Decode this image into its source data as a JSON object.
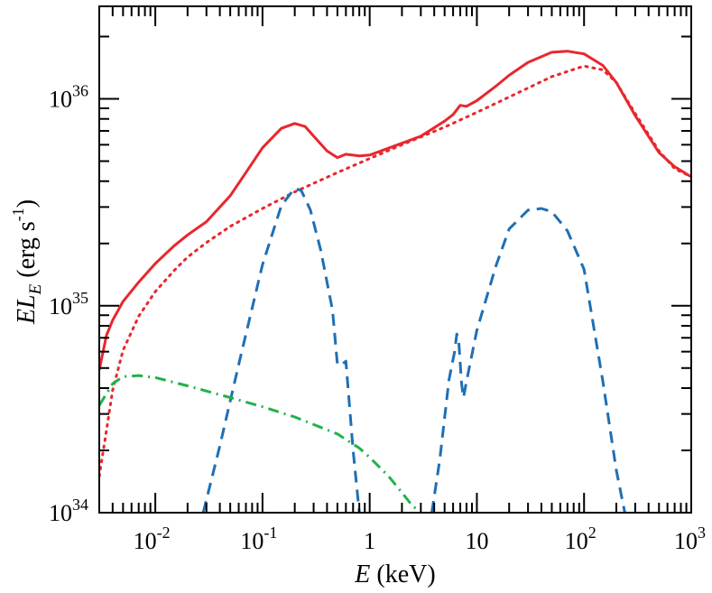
{
  "chart_data": {
    "type": "line",
    "title": "",
    "xscale": "log",
    "yscale": "log",
    "xlim": [
      0.003,
      1000
    ],
    "ylim": [
      1e+34,
      2.8e+36
    ],
    "grid": false,
    "legend": "none",
    "x_ticks": [
      {
        "value": 0.01,
        "mantissa": "10",
        "exp": "-2"
      },
      {
        "value": 0.1,
        "mantissa": "10",
        "exp": "-1"
      },
      {
        "value": 1,
        "mantissa": "1",
        "exp": ""
      },
      {
        "value": 10,
        "mantissa": "10",
        "exp": ""
      },
      {
        "value": 100,
        "mantissa": "10",
        "exp": "2"
      },
      {
        "value": 1000,
        "mantissa": "10",
        "exp": "3"
      }
    ],
    "y_ticks": [
      {
        "value": 1e+34,
        "mantissa": "10",
        "exp": "34"
      },
      {
        "value": 1e+35,
        "mantissa": "10",
        "exp": "35"
      },
      {
        "value": 1e+36,
        "mantissa": "10",
        "exp": "36"
      }
    ],
    "xlabel": {
      "italic": "E",
      "rest": " (keV)"
    },
    "ylabel": {
      "italic1": "EL",
      "sub": "E",
      "rest1": "  (erg s",
      "sup": "-1",
      "rest2": ")"
    },
    "series": [
      {
        "style": "solid",
        "color": "#e8272e",
        "points": [
          [
            0.003,
            4.9e+34
          ],
          [
            0.0035,
            7.2e+34
          ],
          [
            0.004,
            8.5e+34
          ],
          [
            0.005,
            1.05e+35
          ],
          [
            0.007,
            1.3e+35
          ],
          [
            0.01,
            1.6e+35
          ],
          [
            0.015,
            1.95e+35
          ],
          [
            0.02,
            2.2e+35
          ],
          [
            0.03,
            2.55e+35
          ],
          [
            0.05,
            3.4e+35
          ],
          [
            0.07,
            4.4e+35
          ],
          [
            0.1,
            5.8e+35
          ],
          [
            0.15,
            7.2e+35
          ],
          [
            0.2,
            7.6e+35
          ],
          [
            0.25,
            7.35e+35
          ],
          [
            0.3,
            6.6e+35
          ],
          [
            0.4,
            5.6e+35
          ],
          [
            0.5,
            5.2e+35
          ],
          [
            0.6,
            5.4e+35
          ],
          [
            0.8,
            5.3e+35
          ],
          [
            1,
            5.35e+35
          ],
          [
            2,
            6.1e+35
          ],
          [
            3,
            6.6e+35
          ],
          [
            5,
            7.8e+35
          ],
          [
            6,
            8.4e+35
          ],
          [
            7,
            9.3e+35
          ],
          [
            8,
            9.2e+35
          ],
          [
            10,
            9.8e+35
          ],
          [
            15,
            1.15e+36
          ],
          [
            20,
            1.3e+36
          ],
          [
            30,
            1.5e+36
          ],
          [
            50,
            1.68e+36
          ],
          [
            70,
            1.7e+36
          ],
          [
            100,
            1.65e+36
          ],
          [
            150,
            1.45e+36
          ],
          [
            200,
            1.2e+36
          ],
          [
            300,
            8.3e+35
          ],
          [
            500,
            5.5e+35
          ],
          [
            700,
            4.7e+35
          ],
          [
            1000,
            4.2e+35
          ]
        ]
      },
      {
        "style": "dotted",
        "color": "#e8272e",
        "points": [
          [
            0.003,
            1.5e+34
          ],
          [
            0.0035,
            2.5e+34
          ],
          [
            0.004,
            3.9e+34
          ],
          [
            0.005,
            6.1e+34
          ],
          [
            0.007,
            8.9e+34
          ],
          [
            0.01,
            1.17e+35
          ],
          [
            0.015,
            1.48e+35
          ],
          [
            0.02,
            1.72e+35
          ],
          [
            0.03,
            2.02e+35
          ],
          [
            0.05,
            2.42e+35
          ],
          [
            0.1,
            2.95e+35
          ],
          [
            0.2,
            3.55e+35
          ],
          [
            0.5,
            4.4e+35
          ],
          [
            1,
            5.15e+35
          ],
          [
            2,
            6e+35
          ],
          [
            5,
            7.3e+35
          ],
          [
            10,
            8.6e+35
          ],
          [
            20,
            1.02e+36
          ],
          [
            50,
            1.28e+36
          ],
          [
            100,
            1.44e+36
          ],
          [
            150,
            1.38e+36
          ],
          [
            200,
            1.2e+36
          ],
          [
            300,
            8.5e+35
          ],
          [
            500,
            5.6e+35
          ],
          [
            700,
            4.6e+35
          ],
          [
            1000,
            4.2e+35
          ]
        ]
      },
      {
        "style": "dashed",
        "color": "#1f6fb5",
        "points": [
          [
            0.028,
            1e+34
          ],
          [
            0.04,
            2.1e+34
          ],
          [
            0.06,
            5.2e+34
          ],
          [
            0.1,
            1.58e+35
          ],
          [
            0.15,
            3.05e+35
          ],
          [
            0.2,
            3.7e+35
          ],
          [
            0.23,
            3.6e+35
          ],
          [
            0.28,
            2.9e+35
          ],
          [
            0.35,
            1.85e+35
          ],
          [
            0.45,
            9.5e+34
          ],
          [
            0.5,
            5.2e+34
          ],
          [
            0.55,
            5.2e+34
          ],
          [
            0.6,
            5.4e+34
          ],
          [
            0.7,
            2e+34
          ],
          [
            0.8,
            1e+34
          ]
        ]
      },
      {
        "style": "dashed",
        "color": "#1f6fb5",
        "points": [
          [
            3.8,
            1e+34
          ],
          [
            4.5,
            1.8e+34
          ],
          [
            5.5,
            4.4e+34
          ],
          [
            6.2,
            6e+34
          ],
          [
            6.5,
            7.3e+34
          ],
          [
            6.8,
            6.6e+34
          ],
          [
            7.2,
            4.2e+34
          ],
          [
            7.5,
            3.6e+34
          ],
          [
            8,
            4.3e+34
          ],
          [
            10,
            7.6e+34
          ],
          [
            15,
            1.55e+35
          ],
          [
            20,
            2.35e+35
          ],
          [
            30,
            2.9e+35
          ],
          [
            40,
            2.95e+35
          ],
          [
            50,
            2.85e+35
          ],
          [
            70,
            2.3e+35
          ],
          [
            100,
            1.5e+35
          ],
          [
            150,
            4.3e+34
          ],
          [
            200,
            1.6e+34
          ],
          [
            240,
            1e+34
          ]
        ]
      },
      {
        "style": "dashdot",
        "color": "#21b24b",
        "points": [
          [
            0.003,
            3.3e+34
          ],
          [
            0.004,
            4.2e+34
          ],
          [
            0.005,
            4.55e+34
          ],
          [
            0.007,
            4.6e+34
          ],
          [
            0.01,
            4.5e+34
          ],
          [
            0.02,
            4.1e+34
          ],
          [
            0.05,
            3.6e+34
          ],
          [
            0.1,
            3.25e+34
          ],
          [
            0.2,
            2.9e+34
          ],
          [
            0.5,
            2.4e+34
          ],
          [
            0.8,
            2.05e+34
          ],
          [
            1,
            1.85e+34
          ],
          [
            1.5,
            1.5e+34
          ],
          [
            2,
            1.25e+34
          ],
          [
            2.5,
            1.08e+34
          ],
          [
            3,
            1e+34
          ]
        ]
      }
    ]
  }
}
